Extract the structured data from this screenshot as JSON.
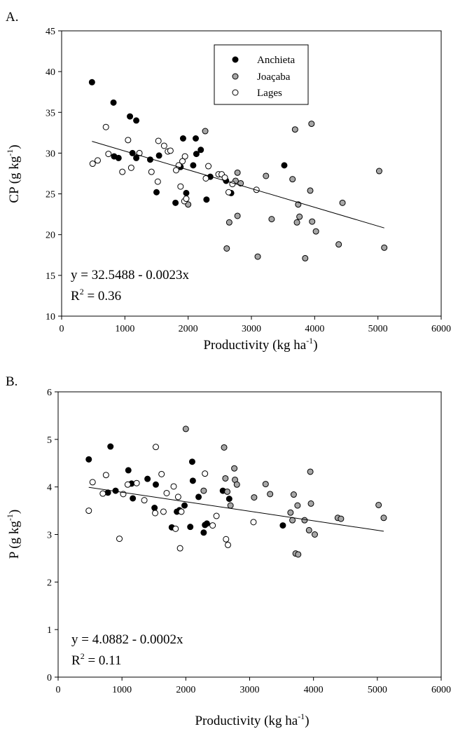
{
  "chart_data": [
    {
      "panel_label": "A.",
      "type": "scatter",
      "xlabel_main": "Productivity (kg ha",
      "xlabel_sup": "-1",
      "xlabel_end": ")",
      "ylabel_main": "CP (g kg",
      "ylabel_sup": "-1",
      "ylabel_end": ")",
      "xlim": [
        0,
        6000
      ],
      "ylim": [
        10,
        45
      ],
      "xticks": [
        0,
        1000,
        2000,
        3000,
        4000,
        5000,
        6000
      ],
      "yticks": [
        10,
        15,
        20,
        25,
        30,
        35,
        40,
        45
      ],
      "equation": "y = 32.5488 - 0.0023x",
      "r2_main": "R",
      "r2_sup": "2",
      "r2_end": " = 0.36",
      "regression": {
        "intercept": 32.5488,
        "slope": -0.0023,
        "x_range": [
          480,
          5100
        ]
      },
      "legend_position": "top-center",
      "series": [
        {
          "name": "Anchieta",
          "fill": "#000000",
          "points": [
            [
              480,
              38.7
            ],
            [
              820,
              36.2
            ],
            [
              1080,
              34.5
            ],
            [
              1180,
              34.0
            ],
            [
              1120,
              30.0
            ],
            [
              900,
              29.4
            ],
            [
              830,
              29.6
            ],
            [
              1180,
              29.4
            ],
            [
              1400,
              29.2
            ],
            [
              1500,
              25.2
            ],
            [
              1540,
              29.7
            ],
            [
              1800,
              23.9
            ],
            [
              1880,
              28.3
            ],
            [
              1920,
              31.8
            ],
            [
              1970,
              25.1
            ],
            [
              2080,
              28.5
            ],
            [
              2120,
              31.8
            ],
            [
              2130,
              29.9
            ],
            [
              2200,
              30.4
            ],
            [
              2290,
              24.3
            ],
            [
              2350,
              27.1
            ],
            [
              2600,
              26.6
            ],
            [
              2680,
              25.1
            ],
            [
              3520,
              28.5
            ]
          ]
        },
        {
          "name": "Joaçaba",
          "fill": "#a6a6a6",
          "points": [
            [
              2000,
              23.7
            ],
            [
              2270,
              32.7
            ],
            [
              2610,
              18.3
            ],
            [
              2650,
              21.5
            ],
            [
              2750,
              26.6
            ],
            [
              2780,
              22.3
            ],
            [
              2780,
              27.6
            ],
            [
              2830,
              26.3
            ],
            [
              3100,
              17.3
            ],
            [
              3230,
              27.2
            ],
            [
              3320,
              21.9
            ],
            [
              3650,
              26.8
            ],
            [
              3690,
              32.9
            ],
            [
              3720,
              21.5
            ],
            [
              3740,
              23.7
            ],
            [
              3760,
              22.2
            ],
            [
              3850,
              17.1
            ],
            [
              3930,
              25.4
            ],
            [
              3950,
              33.6
            ],
            [
              3960,
              21.6
            ],
            [
              4020,
              20.4
            ],
            [
              4380,
              18.8
            ],
            [
              4440,
              23.9
            ],
            [
              5020,
              27.8
            ],
            [
              5100,
              18.4
            ]
          ]
        },
        {
          "name": "Lages",
          "fill": "#ffffff",
          "points": [
            [
              490,
              28.7
            ],
            [
              570,
              29.1
            ],
            [
              700,
              33.2
            ],
            [
              740,
              29.9
            ],
            [
              960,
              27.7
            ],
            [
              1050,
              31.6
            ],
            [
              1100,
              28.2
            ],
            [
              1230,
              30.0
            ],
            [
              1420,
              27.7
            ],
            [
              1520,
              26.5
            ],
            [
              1530,
              31.5
            ],
            [
              1620,
              30.9
            ],
            [
              1680,
              30.2
            ],
            [
              1720,
              30.3
            ],
            [
              1810,
              27.9
            ],
            [
              1850,
              28.5
            ],
            [
              1880,
              25.9
            ],
            [
              1910,
              29.0
            ],
            [
              1940,
              24.1
            ],
            [
              1950,
              29.6
            ],
            [
              1970,
              24.4
            ],
            [
              2280,
              26.9
            ],
            [
              2320,
              28.4
            ],
            [
              2480,
              27.4
            ],
            [
              2530,
              27.4
            ],
            [
              2580,
              27.0
            ],
            [
              2640,
              25.2
            ],
            [
              2700,
              26.2
            ],
            [
              3080,
              25.5
            ]
          ]
        }
      ]
    },
    {
      "panel_label": "B.",
      "type": "scatter",
      "xlabel_main": "Productivity (kg ha",
      "xlabel_sup": "-1",
      "xlabel_end": ")",
      "ylabel_main": "P (g kg",
      "ylabel_sup": "-1",
      "ylabel_end": ")",
      "xlim": [
        0,
        6000
      ],
      "ylim": [
        0,
        6
      ],
      "xticks": [
        0,
        1000,
        2000,
        3000,
        4000,
        5000,
        6000
      ],
      "yticks": [
        0,
        1,
        2,
        3,
        4,
        5,
        6
      ],
      "equation": "y = 4.0882 - 0.0002x",
      "r2_main": "R",
      "r2_sup": "2",
      "r2_end": " = 0.11",
      "regression": {
        "intercept": 4.0882,
        "slope": -0.0002,
        "x_range": [
          480,
          5100
        ]
      },
      "series": [
        {
          "name": "Anchieta",
          "fill": "#000000",
          "points": [
            [
              480,
              4.58
            ],
            [
              820,
              4.85
            ],
            [
              780,
              3.88
            ],
            [
              900,
              3.92
            ],
            [
              1100,
              4.35
            ],
            [
              1150,
              4.07
            ],
            [
              1170,
              3.76
            ],
            [
              1400,
              4.17
            ],
            [
              1510,
              3.56
            ],
            [
              1530,
              4.05
            ],
            [
              1780,
              3.15
            ],
            [
              1860,
              3.48
            ],
            [
              1900,
              3.51
            ],
            [
              1980,
              3.61
            ],
            [
              2070,
              3.16
            ],
            [
              2100,
              4.53
            ],
            [
              2110,
              4.13
            ],
            [
              2200,
              3.79
            ],
            [
              2280,
              3.04
            ],
            [
              2300,
              3.2
            ],
            [
              2330,
              3.23
            ],
            [
              2580,
              3.92
            ],
            [
              2680,
              3.75
            ],
            [
              3520,
              3.19
            ]
          ]
        },
        {
          "name": "Joaçaba",
          "fill": "#a6a6a6",
          "points": [
            [
              2000,
              5.22
            ],
            [
              2600,
              4.83
            ],
            [
              2620,
              4.18
            ],
            [
              2280,
              3.92
            ],
            [
              2650,
              3.9
            ],
            [
              2700,
              3.61
            ],
            [
              2760,
              4.39
            ],
            [
              2770,
              4.15
            ],
            [
              2800,
              4.05
            ],
            [
              3070,
              3.78
            ],
            [
              3250,
              4.06
            ],
            [
              3320,
              3.85
            ],
            [
              3640,
              3.46
            ],
            [
              3670,
              3.3
            ],
            [
              3690,
              3.84
            ],
            [
              3720,
              2.6
            ],
            [
              3750,
              3.61
            ],
            [
              3760,
              2.58
            ],
            [
              3860,
              3.3
            ],
            [
              3930,
              3.09
            ],
            [
              3950,
              4.32
            ],
            [
              3960,
              3.65
            ],
            [
              4020,
              3.0
            ],
            [
              4380,
              3.35
            ],
            [
              4430,
              3.33
            ],
            [
              5020,
              3.62
            ],
            [
              5100,
              3.35
            ]
          ]
        },
        {
          "name": "Lages",
          "fill": "#ffffff",
          "points": [
            [
              480,
              3.5
            ],
            [
              540,
              4.1
            ],
            [
              700,
              3.86
            ],
            [
              750,
              4.25
            ],
            [
              960,
              2.91
            ],
            [
              1020,
              3.85
            ],
            [
              1090,
              4.05
            ],
            [
              1230,
              4.08
            ],
            [
              1350,
              3.72
            ],
            [
              1520,
              3.45
            ],
            [
              1530,
              4.84
            ],
            [
              1620,
              4.27
            ],
            [
              1650,
              3.48
            ],
            [
              1700,
              3.87
            ],
            [
              1810,
              4.01
            ],
            [
              1840,
              3.12
            ],
            [
              1880,
              3.79
            ],
            [
              1910,
              2.71
            ],
            [
              1930,
              3.48
            ],
            [
              2300,
              4.28
            ],
            [
              2420,
              3.19
            ],
            [
              2480,
              3.39
            ],
            [
              2630,
              2.9
            ],
            [
              2660,
              2.78
            ],
            [
              3060,
              3.26
            ]
          ]
        }
      ]
    }
  ]
}
